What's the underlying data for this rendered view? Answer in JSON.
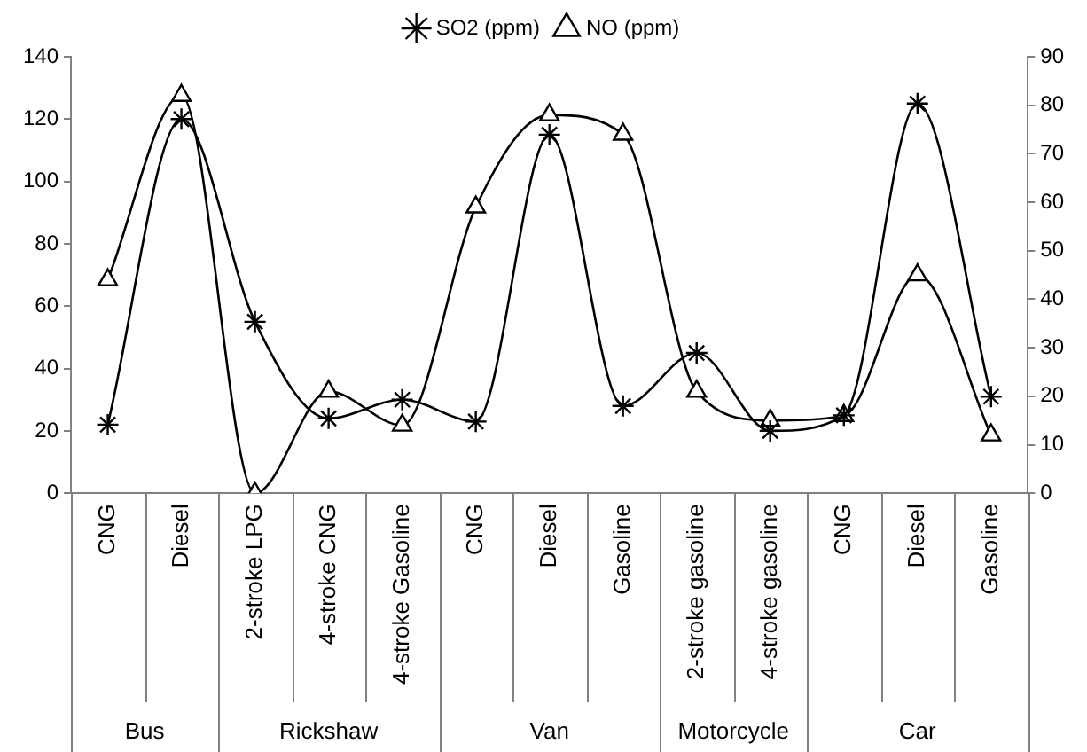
{
  "chart_data": {
    "type": "line",
    "categories": [
      "CNG",
      "Diesel",
      "2-stroke LPG",
      "4-stroke CNG",
      "4-stroke Gasoline",
      "CNG",
      "Diesel",
      "Gasoline",
      "2-stroke gasoline",
      "4-stroke gasoline",
      "CNG",
      "Diesel",
      "Gasoline"
    ],
    "series": [
      {
        "name": "SO2 (ppm)",
        "color": "#000000",
        "marker": "cross",
        "values": [
          22,
          120,
          55,
          24,
          30,
          23,
          115,
          28,
          45,
          20,
          25,
          125,
          31
        ]
      },
      {
        "name": "NO (ppm)",
        "color": "#000000",
        "marker": "triangle",
        "axis": "y2",
        "values": [
          44,
          82,
          0,
          21,
          14,
          59,
          78,
          74,
          21,
          15,
          16,
          45,
          12
        ]
      }
    ],
    "ylim": [
      0,
      140
    ],
    "yticks": [
      0,
      20,
      40,
      60,
      80,
      100,
      120,
      140
    ],
    "y2lim": [
      0,
      90
    ],
    "y2ticks": [
      0,
      10,
      20,
      30,
      40,
      50,
      60,
      70,
      80,
      90
    ],
    "annotations": [
      "Bus",
      "Rickshaw",
      "Van",
      "Motorcycle",
      "Car"
    ],
    "grid": false,
    "legend": "top",
    "line_style": "solid"
  }
}
